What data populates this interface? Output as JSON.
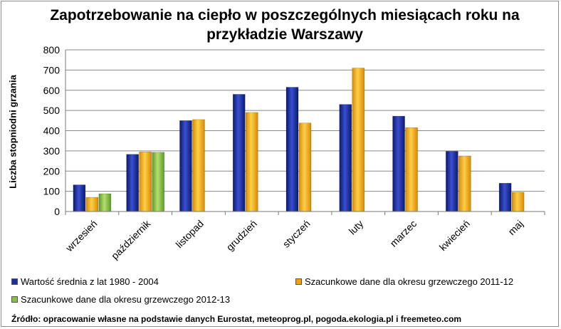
{
  "chart_data": {
    "type": "bar",
    "title": "Zapotrzebowanie na ciepło w poszczególnych miesiącach roku na przykładzie Warszawy",
    "ylabel": "Liczba stopniodni grzania",
    "xlabel": "",
    "ylim": [
      0,
      800
    ],
    "yticks": [
      0,
      100,
      200,
      300,
      400,
      500,
      600,
      700,
      800
    ],
    "categories": [
      "wrzesień",
      "październik",
      "listopad",
      "grudzień",
      "styczeń",
      "luty",
      "marzec",
      "kwiecień",
      "maj"
    ],
    "series": [
      {
        "name": "Wartość średnia  z lat 1980 - 2004",
        "color": "#1f2fa0",
        "values": [
          132,
          283,
          450,
          580,
          615,
          530,
          472,
          298,
          140
        ]
      },
      {
        "name": "Szacunkowe dane dla okresu grzewczego 2011-12",
        "color": "#f5a200",
        "values": [
          70,
          295,
          455,
          490,
          438,
          710,
          415,
          275,
          95
        ]
      },
      {
        "name": "Szacunkowe dane dla okresu grzewczego 2012-13",
        "color": "#8cbf3f",
        "values": [
          88,
          293,
          null,
          null,
          null,
          null,
          null,
          null,
          null
        ]
      }
    ],
    "legend": "bottom",
    "grid": true
  },
  "source": "Źródło: opracowanie własne na podstawie danych Eurostat, meteoprog.pl, pogoda.ekologia.pl i freemeteo.com"
}
